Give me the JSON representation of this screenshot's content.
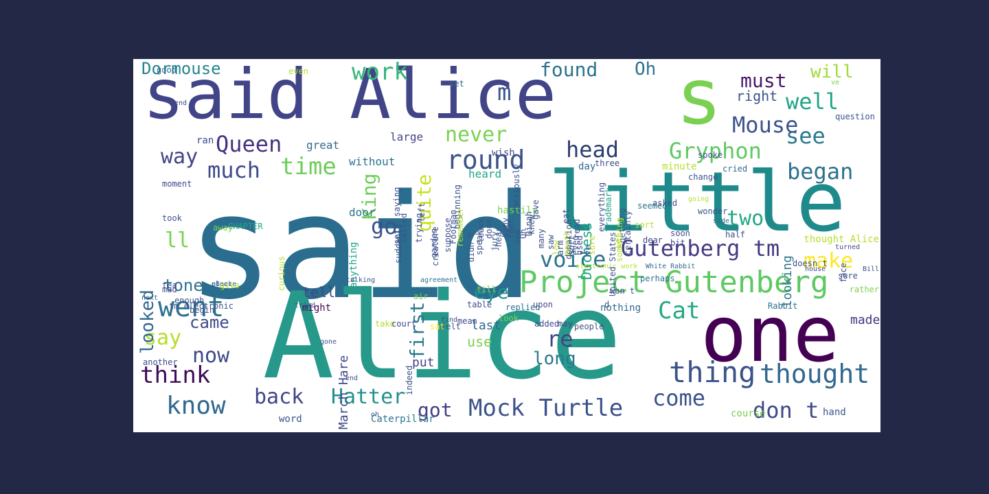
{
  "panel_background": "#ffffff",
  "page_background": "#222845",
  "words": [
    {
      "text": "said",
      "color": "#2a6d8e"
    },
    {
      "text": "Alice",
      "color": "#26998a"
    },
    {
      "text": "said Alice",
      "color": "#414487"
    },
    {
      "text": "s",
      "color": "#7ad151"
    },
    {
      "text": "little",
      "color": "#1f8a8b"
    },
    {
      "text": "one",
      "color": "#440154"
    },
    {
      "text": "Project Gutenberg",
      "color": "#5ec962"
    },
    {
      "text": "thing",
      "color": "#3b528b"
    },
    {
      "text": "thought",
      "color": "#31688e"
    },
    {
      "text": "Mock Turtle",
      "color": "#3b528b"
    },
    {
      "text": "Gutenberg tm",
      "color": "#443983"
    },
    {
      "text": "Hatter",
      "color": "#21918c"
    },
    {
      "text": "know",
      "color": "#31688e"
    },
    {
      "text": "went",
      "color": "#2c728e"
    },
    {
      "text": "Queen",
      "color": "#46327e"
    },
    {
      "text": "work",
      "color": "#35b779"
    },
    {
      "text": "much",
      "color": "#3e4a89"
    },
    {
      "text": "time",
      "color": "#6ccd5a"
    },
    {
      "text": "round",
      "color": "#3b528b"
    },
    {
      "text": "head",
      "color": "#2c3e70"
    },
    {
      "text": "Gryphon",
      "color": "#5ec962"
    },
    {
      "text": "see",
      "color": "#2a788e"
    },
    {
      "text": "began",
      "color": "#2c728e"
    },
    {
      "text": "Mouse",
      "color": "#3b528b"
    },
    {
      "text": "well",
      "color": "#20a386"
    },
    {
      "text": "must",
      "color": "#48186a"
    },
    {
      "text": "will",
      "color": "#a0da39"
    },
    {
      "text": "voice",
      "color": "#2c728e"
    },
    {
      "text": "make",
      "color": "#fde725"
    },
    {
      "text": "Cat",
      "color": "#22a884"
    },
    {
      "text": "think",
      "color": "#3e0b59"
    },
    {
      "text": "say",
      "color": "#b5de2b"
    },
    {
      "text": "now",
      "color": "#3e4989"
    },
    {
      "text": "back",
      "color": "#414487"
    },
    {
      "text": "come",
      "color": "#3b528b"
    },
    {
      "text": "don t",
      "color": "#3e4a89"
    },
    {
      "text": "got",
      "color": "#433e85"
    },
    {
      "text": "go",
      "color": "#3b528b"
    },
    {
      "text": "Dormouse",
      "color": "#25858e"
    },
    {
      "text": "Oh",
      "color": "#2c728e"
    },
    {
      "text": "found",
      "color": "#2c728e"
    },
    {
      "text": "never",
      "color": "#7ad151"
    },
    {
      "text": "way",
      "color": "#414487"
    },
    {
      "text": "two",
      "color": "#22a884"
    },
    {
      "text": "tone",
      "color": "#2c728e"
    },
    {
      "text": "eye",
      "color": "#21918c"
    },
    {
      "text": "re",
      "color": "#414487"
    },
    {
      "text": "long",
      "color": "#2a788e"
    },
    {
      "text": "came",
      "color": "#3e4989"
    },
    {
      "text": "tell",
      "color": "#3e4989"
    },
    {
      "text": "put",
      "color": "#414487"
    },
    {
      "text": "use",
      "color": "#7ad151"
    },
    {
      "text": "last",
      "color": "#31688e"
    },
    {
      "text": "made",
      "color": "#46327e"
    },
    {
      "text": "right",
      "color": "#3b528b"
    },
    {
      "text": "m",
      "color": "#3b528b"
    },
    {
      "text": "ll",
      "color": "#7ad151"
    },
    {
      "text": "King",
      "color": "#6ece58"
    },
    {
      "text": "quite",
      "color": "#c8e020"
    },
    {
      "text": "first",
      "color": "#2a788e"
    },
    {
      "text": "looked",
      "color": "#31688e"
    },
    {
      "text": "Duchess",
      "color": "#20a486"
    },
    {
      "text": "looking",
      "color": "#2c728e"
    },
    {
      "text": "March Hare",
      "color": "#3e4989"
    },
    {
      "text": "without",
      "color": "#2c728e"
    },
    {
      "text": "great",
      "color": "#31688e"
    },
    {
      "text": "large",
      "color": "#414487"
    },
    {
      "text": "door",
      "color": "#2c728e"
    },
    {
      "text": "heard",
      "color": "#20a486"
    },
    {
      "text": "minute",
      "color": "#b5de2b"
    },
    {
      "text": "day",
      "color": "#31688e"
    },
    {
      "text": "cried",
      "color": "#31688e"
    },
    {
      "text": "Rabbit",
      "color": "#2c728e"
    },
    {
      "text": "Caterpillar",
      "color": "#2a788e"
    },
    {
      "text": "word",
      "color": "#3b528b"
    },
    {
      "text": "course",
      "color": "#7ad151"
    },
    {
      "text": "hand",
      "color": "#3b528b"
    },
    {
      "text": "nothing",
      "color": "#31688e"
    },
    {
      "text": "might",
      "color": "#440154"
    },
    {
      "text": "anything",
      "color": "#20a486"
    },
    {
      "text": "replied",
      "color": "#2c728e"
    },
    {
      "text": "curious",
      "color": "#b5de2b"
    },
    {
      "text": "next",
      "color": "#31688e"
    },
    {
      "text": "electronic work",
      "color": "#bddf26"
    },
    {
      "text": "White Rabbit",
      "color": "#31688e"
    },
    {
      "text": "CHAPTER",
      "color": "#22a884"
    },
    {
      "text": "eBook",
      "color": "#2c728e"
    },
    {
      "text": "agreement",
      "color": "#2c728e"
    },
    {
      "text": "talking",
      "color": "#3b528b"
    },
    {
      "text": "tea",
      "color": "#3e4989"
    },
    {
      "text": "another",
      "color": "#3e4989"
    },
    {
      "text": "moment",
      "color": "#3e4989"
    },
    {
      "text": "away",
      "color": "#7ad151"
    },
    {
      "text": "took",
      "color": "#3b528b"
    },
    {
      "text": "sort",
      "color": "#b5de2b"
    },
    {
      "text": "asked",
      "color": "#3b528b"
    },
    {
      "text": "wonder",
      "color": "#3b528b"
    },
    {
      "text": "change",
      "color": "#3b528b"
    },
    {
      "text": "spoke",
      "color": "#3b528b"
    },
    {
      "text": "question",
      "color": "#3b528b"
    },
    {
      "text": "three",
      "color": "#3e4989"
    },
    {
      "text": "end",
      "color": "#3e4989"
    },
    {
      "text": "yet",
      "color": "#31688e"
    },
    {
      "text": "ran",
      "color": "#3e4989"
    },
    {
      "text": "wish",
      "color": "#3e4989"
    },
    {
      "text": "going",
      "color": "#b5de2b"
    },
    {
      "text": "good",
      "color": "#31688e"
    },
    {
      "text": "even",
      "color": "#b5de2b"
    },
    {
      "text": "ve",
      "color": "#7ad151"
    },
    {
      "text": "thought Alice",
      "color": "#b5de2b"
    },
    {
      "text": "half",
      "color": "#3e4989"
    },
    {
      "text": "side",
      "color": "#31688e"
    },
    {
      "text": "seemed",
      "color": "#2c728e"
    },
    {
      "text": "soon",
      "color": "#3e4989"
    },
    {
      "text": "dear",
      "color": "#3e4989"
    },
    {
      "text": "sure",
      "color": "#3b528b"
    },
    {
      "text": "rather",
      "color": "#7ad151"
    },
    {
      "text": "perhaps",
      "color": "#2c728e"
    },
    {
      "text": "Bill",
      "color": "#3e4989"
    },
    {
      "text": "doesn t",
      "color": "#3b528b"
    },
    {
      "text": "turned",
      "color": "#3e4989"
    },
    {
      "text": "house",
      "color": "#3e4989"
    },
    {
      "text": "bit",
      "color": "#3e4989"
    },
    {
      "text": "air",
      "color": "#7ad151"
    },
    {
      "text": "may",
      "color": "#3e4989"
    },
    {
      "text": "take",
      "color": "#b5de2b"
    },
    {
      "text": "upon",
      "color": "#3e4989"
    },
    {
      "text": "people",
      "color": "#3b528b"
    },
    {
      "text": "table",
      "color": "#3e4989"
    },
    {
      "text": "look",
      "color": "#7ad151"
    },
    {
      "text": "felt",
      "color": "#3b528b"
    },
    {
      "text": "find",
      "color": "#3e4989"
    },
    {
      "text": "hastily",
      "color": "#7ad151"
    },
    {
      "text": "added",
      "color": "#3e4989"
    },
    {
      "text": "court",
      "color": "#3e4989"
    },
    {
      "text": "mean",
      "color": "#3e4989"
    },
    {
      "text": "d",
      "color": "#3b528b"
    },
    {
      "text": "won t",
      "color": "#3e4989"
    },
    {
      "text": "sat",
      "color": "#fde725"
    },
    {
      "text": "till",
      "color": "#7ad151"
    },
    {
      "text": "mad",
      "color": "#3e4989"
    },
    {
      "text": "begin",
      "color": "#3b528b"
    },
    {
      "text": "tm electronic",
      "color": "#3b528b"
    },
    {
      "text": "please",
      "color": "#3b528b"
    },
    {
      "text": "give",
      "color": "#b5de2b"
    },
    {
      "text": "enough",
      "color": "#3b528b"
    },
    {
      "text": "suddenly",
      "color": "#3b528b"
    },
    {
      "text": "indeed",
      "color": "#3b528b"
    },
    {
      "text": "saying",
      "color": "#3b528b"
    },
    {
      "text": "everything",
      "color": "#3b528b"
    },
    {
      "text": "getting",
      "color": "#3b528b"
    },
    {
      "text": "donation",
      "color": "#3b528b"
    },
    {
      "text": "creature",
      "color": "#3b528b"
    },
    {
      "text": "something",
      "color": "#b5de2b"
    },
    {
      "text": "face",
      "color": "#3b528b"
    },
    {
      "text": "eat",
      "color": "#3b528b"
    },
    {
      "text": "read",
      "color": "#3b528b"
    },
    {
      "text": "gave",
      "color": "#3b528b"
    },
    {
      "text": "anxiously",
      "color": "#3b528b"
    },
    {
      "text": "certainly",
      "color": "#3b528b"
    },
    {
      "text": "United States",
      "color": "#3b528b"
    },
    {
      "text": "trademark",
      "color": "#20a486"
    },
    {
      "text": "Let",
      "color": "#b5de2b"
    },
    {
      "text": "set",
      "color": "#3b528b"
    },
    {
      "text": "called",
      "color": "#3b528b"
    },
    {
      "text": "trying",
      "color": "#3b528b"
    },
    {
      "text": "left",
      "color": "#3b528b"
    },
    {
      "text": "Footman",
      "color": "#3b528b"
    },
    {
      "text": "garden",
      "color": "#3b528b"
    },
    {
      "text": "suppose",
      "color": "#3b528b"
    },
    {
      "text": "beginning",
      "color": "#3b528b"
    },
    {
      "text": "remember",
      "color": "#b5de2b"
    },
    {
      "text": "didn t",
      "color": "#3b528b"
    },
    {
      "text": "speak",
      "color": "#3b528b"
    },
    {
      "text": "leave",
      "color": "#3b528b"
    },
    {
      "text": "done",
      "color": "#3b528b"
    },
    {
      "text": "jury",
      "color": "#3b528b"
    },
    {
      "text": "hear",
      "color": "#3b528b"
    },
    {
      "text": "baby",
      "color": "#3b528b"
    },
    {
      "text": "feet",
      "color": "#3b528b"
    },
    {
      "text": "sea",
      "color": "#3b528b"
    },
    {
      "text": "Oh",
      "color": "#3b528b"
    },
    {
      "text": "Dinah",
      "color": "#3b528b"
    },
    {
      "text": "knew",
      "color": "#3b528b"
    },
    {
      "text": "many",
      "color": "#3b528b"
    },
    {
      "text": "saw",
      "color": "#3b528b"
    },
    {
      "text": "low",
      "color": "#b5de2b"
    },
    {
      "text": "arm",
      "color": "#3b528b"
    },
    {
      "text": "mouth",
      "color": "#b5de2b"
    },
    {
      "text": "sort",
      "color": "#3b528b"
    },
    {
      "text": "even",
      "color": "#3b528b"
    },
    {
      "text": "used",
      "color": "#3e4989"
    },
    {
      "text": "I",
      "color": "#3b528b"
    },
    {
      "text": "ve",
      "color": "#3b528b"
    },
    {
      "text": "sure",
      "color": "#b5de2b"
    },
    {
      "text": "tried",
      "color": "#3b528b"
    },
    {
      "text": "gone",
      "color": "#3b528b"
    },
    {
      "text": "end",
      "color": "#3b528b"
    },
    {
      "text": "oh",
      "color": "#3b528b"
    }
  ]
}
